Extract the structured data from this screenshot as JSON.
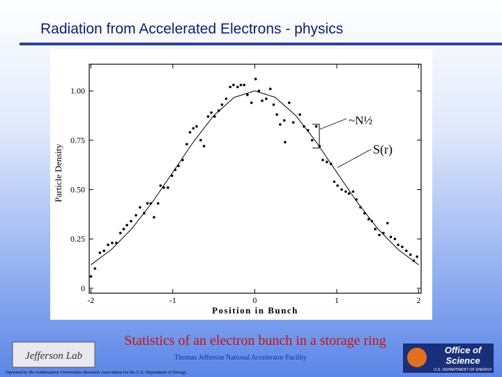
{
  "slide": {
    "title": "Radiation from Accelerated Electrons - physics",
    "caption": "Statistics of an electron bunch in a storage ring",
    "footer_center": "Thomas Jefferson National Accelerator Facility",
    "footer_left": "Operated by the Southeastern Universities Research Association for the U.S. Department of Energy",
    "logo_left": "Jefferson Lab",
    "logo_right": [
      "Office of",
      "Science",
      "U.S. DEPARTMENT OF ENERGY"
    ]
  },
  "chart_data": {
    "type": "scatter",
    "xlabel": "Position in Bunch",
    "ylabel": "Particle Density",
    "xlim": [
      -2.02,
      2.03
    ],
    "ylim": [
      -0.025,
      1.135
    ],
    "xticks": [
      -2,
      -1,
      0,
      1,
      2
    ],
    "yticks": [
      0,
      {
        "value": 0.25,
        "label": "0.25"
      },
      {
        "value": 0.5,
        "label": "0.50"
      },
      {
        "value": 0.75,
        "label": "0.75"
      },
      {
        "value": 1,
        "label": "1.00"
      }
    ],
    "color": "#000000",
    "x": [
      -2.0,
      -1.95,
      -1.89,
      -1.84,
      -1.79,
      -1.74,
      -1.69,
      -1.64,
      -1.6,
      -1.56,
      -1.51,
      -1.45,
      -1.4,
      -1.35,
      -1.31,
      -1.27,
      -1.23,
      -1.18,
      -1.15,
      -1.11,
      -1.06,
      -1.01,
      -0.97,
      -0.93,
      -0.88,
      -0.83,
      -0.79,
      -0.75,
      -0.71,
      -0.66,
      -0.62,
      -0.57,
      -0.53,
      -0.49,
      -0.44,
      -0.4,
      -0.35,
      -0.3,
      -0.26,
      -0.21,
      -0.17,
      -0.13,
      -0.09,
      -0.04,
      0.01,
      0.05,
      0.09,
      0.14,
      0.19,
      0.23,
      0.27,
      0.31,
      0.36,
      0.37,
      0.42,
      0.47,
      0.55,
      0.6,
      0.65,
      0.7,
      0.75,
      0.79,
      0.83,
      0.88,
      0.93,
      0.97,
      1.01,
      1.06,
      1.11,
      1.15,
      1.2,
      1.24,
      1.29,
      1.34,
      1.39,
      1.43,
      1.47,
      1.52,
      1.57,
      1.62,
      1.66,
      1.71,
      1.75,
      1.8,
      1.85,
      1.9,
      1.94,
      1.98
    ],
    "y": [
      0.06,
      0.1,
      0.18,
      0.19,
      0.22,
      0.23,
      0.23,
      0.28,
      0.3,
      0.32,
      0.34,
      0.37,
      0.41,
      0.38,
      0.43,
      0.43,
      0.36,
      0.43,
      0.52,
      0.51,
      0.51,
      0.57,
      0.6,
      0.62,
      0.65,
      0.73,
      0.79,
      0.81,
      0.82,
      0.75,
      0.72,
      0.87,
      0.89,
      0.87,
      0.9,
      0.93,
      0.96,
      1.02,
      1.03,
      1.02,
      1.03,
      1.03,
      0.98,
      0.94,
      1.06,
      1.0,
      0.95,
      0.96,
      1.01,
      0.93,
      0.88,
      0.83,
      0.85,
      0.74,
      0.94,
      0.84,
      0.88,
      0.82,
      0.8,
      0.75,
      0.82,
      0.72,
      0.65,
      0.64,
      0.63,
      0.54,
      0.52,
      0.5,
      0.49,
      0.48,
      0.49,
      0.45,
      0.41,
      0.38,
      0.35,
      0.34,
      0.3,
      0.27,
      0.28,
      0.33,
      0.26,
      0.25,
      0.22,
      0.21,
      0.19,
      0.17,
      0.14,
      0.16
    ],
    "curve": {
      "x": [
        -2,
        -1.75,
        -1.5,
        -1.25,
        -1,
        -0.75,
        -0.5,
        -0.25,
        0,
        0.25,
        0.5,
        0.75,
        1,
        1.25,
        1.5,
        1.75,
        2
      ],
      "y": [
        0.119,
        0.196,
        0.302,
        0.436,
        0.588,
        0.741,
        0.875,
        0.967,
        1.0,
        0.967,
        0.875,
        0.741,
        0.588,
        0.436,
        0.302,
        0.196,
        0.119
      ]
    },
    "annotations": [
      "~N½",
      "S(r)"
    ]
  }
}
